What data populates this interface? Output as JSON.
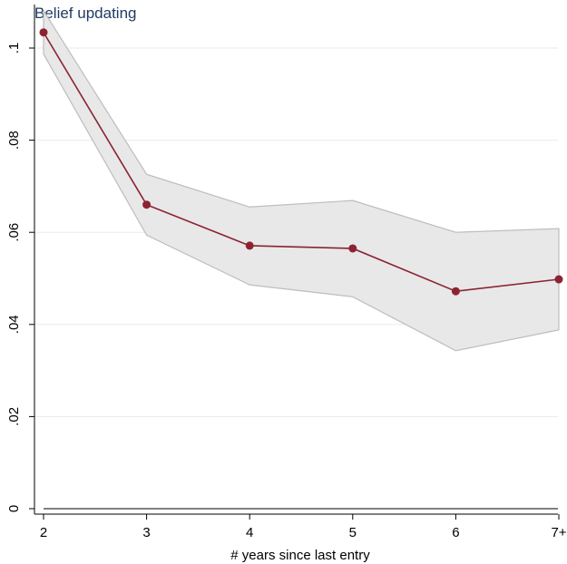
{
  "chart_data": {
    "type": "line",
    "title": "Belief updating",
    "xlabel": "# years since last entry",
    "ylabel": "",
    "categories": [
      "2",
      "3",
      "4",
      "5",
      "6",
      "7+"
    ],
    "series": [
      {
        "values": [
          0.1034,
          0.066,
          0.0571,
          0.0565,
          0.0472,
          0.0498
        ],
        "ci_lower": [
          0.0987,
          0.0594,
          0.0486,
          0.046,
          0.0343,
          0.0388
        ],
        "ci_upper": [
          0.1081,
          0.0726,
          0.0655,
          0.0669,
          0.06,
          0.0608
        ]
      }
    ],
    "ylim": [
      0,
      0.108
    ],
    "yticks": [
      0,
      0.02,
      0.04,
      0.06,
      0.08,
      0.1
    ],
    "ytick_labels": [
      "0",
      ".02",
      ".04",
      ".06",
      ".08",
      ".1"
    ],
    "grid": true,
    "colors": {
      "line": "#8b2332",
      "marker": "#8b2332",
      "band_fill": "#e8e8e8",
      "band_stroke": "#bdbdbd",
      "grid": "#eaeaea",
      "title": "#1f3b63"
    }
  }
}
